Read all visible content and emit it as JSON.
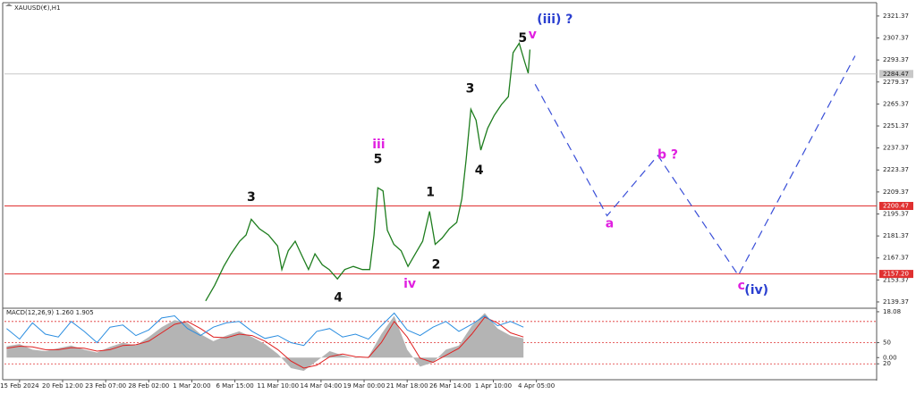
{
  "chart_data": [
    {
      "type": "line",
      "title": "XAUUSD(€),H1",
      "color": "#1e7d1e",
      "x": [
        4.32,
        4.53,
        4.74,
        4.91,
        5.11,
        5.26,
        5.38,
        5.57,
        5.78,
        5.99,
        6.09,
        6.24,
        6.4,
        6.57,
        6.71,
        6.86,
        7.03,
        7.19,
        7.38,
        7.55,
        7.75,
        7.96,
        8.13,
        8.23,
        8.32,
        8.44,
        8.54,
        8.69,
        8.86,
        9.02,
        9.19,
        9.36,
        9.52,
        9.65,
        9.81,
        9.98,
        10.15,
        10.27,
        10.37,
        10.48,
        10.6,
        10.71,
        10.87,
        11.02,
        11.19,
        11.35,
        11.46,
        11.6,
        11.73,
        11.81,
        11.85
      ],
      "values": [
        2140,
        2150,
        2162,
        2170,
        2178,
        2182,
        2192,
        2186,
        2182,
        2175,
        2160,
        2172,
        2178,
        2168,
        2160,
        2170,
        2163,
        2160,
        2154,
        2160,
        2162,
        2160,
        2160,
        2182,
        2212,
        2210,
        2185,
        2176,
        2172,
        2162,
        2170,
        2178,
        2197,
        2176,
        2180,
        2186,
        2190,
        2205,
        2230,
        2262,
        2255,
        2236,
        2250,
        2258,
        2265,
        2270,
        2298,
        2304,
        2292,
        2285,
        2300
      ],
      "xlim": [
        -0.35,
        19.9
      ],
      "ylim": [
        2136.5,
        2328.7
      ],
      "yticks": [
        2321.37,
        2307.37,
        2293.37,
        2279.37,
        2265.37,
        2251.37,
        2237.37,
        2223.37,
        2209.37,
        2195.37,
        2181.37,
        2167.37,
        2153.37,
        2139.37
      ],
      "xticks": [
        {
          "value": 0,
          "label": "15 Feb 2024"
        },
        {
          "value": 1,
          "label": "20 Feb 12:00"
        },
        {
          "value": 2,
          "label": "23 Feb 07:00"
        },
        {
          "value": 3,
          "label": "28 Feb 02:00"
        },
        {
          "value": 4,
          "label": "1 Mar 20:00"
        },
        {
          "value": 5,
          "label": "6 Mar 15:00"
        },
        {
          "value": 6,
          "label": "11 Mar 10:00"
        },
        {
          "value": 7,
          "label": "14 Mar 04:00"
        },
        {
          "value": 8,
          "label": "19 Mar 00:00"
        },
        {
          "value": 9,
          "label": "21 Mar 18:00"
        },
        {
          "value": 10,
          "label": "26 Mar 14:00"
        },
        {
          "value": 11,
          "label": "1 Apr 10:00"
        },
        {
          "value": 12,
          "label": "4 Apr 05:00"
        }
      ],
      "hlines": [
        {
          "value": 2284.47,
          "color": "#c8c8c8"
        },
        {
          "value": 2200.47,
          "color": "#e03030"
        },
        {
          "value": 2157.2,
          "label": "2157.20",
          "color": "#e03030"
        }
      ],
      "projection": {
        "color": "#3a4fd8",
        "x": [
          11.97,
          13.64,
          14.82,
          16.69,
          19.4
        ],
        "y": [
          2277.9,
          2194.2,
          2232.6,
          2156.3,
          2296
        ]
      },
      "annotations": [
        {
          "text": "3",
          "x": 5.38,
          "y": 2206,
          "color": "#111111"
        },
        {
          "text": "4",
          "x": 7.4,
          "y": 2142,
          "color": "#111111"
        },
        {
          "text": "iii",
          "x": 8.34,
          "y": 2239.4,
          "color": "#e020e0"
        },
        {
          "text": "5",
          "x": 8.32,
          "y": 2230,
          "color": "#111111"
        },
        {
          "text": "iv",
          "x": 9.06,
          "y": 2150.7,
          "color": "#e020e0"
        },
        {
          "text": "1",
          "x": 9.54,
          "y": 2208.9,
          "color": "#111111"
        },
        {
          "text": "2",
          "x": 9.67,
          "y": 2163,
          "color": "#111111"
        },
        {
          "text": "3",
          "x": 10.46,
          "y": 2275,
          "color": "#111111"
        },
        {
          "text": "4",
          "x": 10.67,
          "y": 2223,
          "color": "#111111"
        },
        {
          "text": "5",
          "x": 11.68,
          "y": 2307,
          "color": "#111111"
        },
        {
          "text": "v",
          "x": 11.91,
          "y": 2309.5,
          "color": "#e020e0"
        },
        {
          "text": "(iii) ?",
          "x": 12.43,
          "y": 2319,
          "color": "#2a3fd0"
        },
        {
          "text": "a",
          "x": 13.7,
          "y": 2189,
          "color": "#e020e0"
        },
        {
          "text": "b ?",
          "x": 15.05,
          "y": 2233,
          "color": "#e020e0"
        },
        {
          "text": "c",
          "x": 16.76,
          "y": 2149.5,
          "color": "#e020e0"
        },
        {
          "text": "(iv)",
          "x": 17.11,
          "y": 2146.7,
          "color": "#2a3fd0"
        }
      ]
    },
    {
      "type": "line",
      "title": "MACD(12,26,9) 1.260 1.905",
      "x": [
        -0.3,
        0,
        0.3,
        0.6,
        0.9,
        1.2,
        1.5,
        1.8,
        2.1,
        2.4,
        2.7,
        3.0,
        3.3,
        3.6,
        3.9,
        4.2,
        4.5,
        4.8,
        5.1,
        5.4,
        5.7,
        6.0,
        6.3,
        6.6,
        6.9,
        7.2,
        7.5,
        7.8,
        8.1,
        8.4,
        8.7,
        9.0,
        9.3,
        9.6,
        9.9,
        10.2,
        10.5,
        10.8,
        11.1,
        11.4,
        11.7
      ],
      "series": [
        {
          "style": "area",
          "color": "#b4b4b4",
          "values": [
            45,
            48,
            40,
            38,
            42,
            46,
            40,
            36,
            44,
            50,
            46,
            58,
            72,
            82,
            78,
            62,
            52,
            60,
            66,
            58,
            48,
            34,
            14,
            10,
            24,
            38,
            32,
            28,
            30,
            62,
            88,
            40,
            16,
            22,
            40,
            46,
            74,
            92,
            70,
            60,
            56
          ]
        },
        {
          "style": "line",
          "color": "#e02020",
          "values": [
            42,
            45,
            44,
            40,
            40,
            43,
            42,
            38,
            40,
            46,
            47,
            52,
            64,
            76,
            80,
            70,
            58,
            57,
            62,
            60,
            52,
            40,
            24,
            14,
            18,
            30,
            34,
            30,
            29,
            50,
            80,
            58,
            28,
            22,
            32,
            42,
            62,
            86,
            78,
            64,
            58
          ]
        },
        {
          "style": "line",
          "color": "#2a8de0",
          "values": [
            70,
            55,
            78,
            62,
            58,
            80,
            66,
            50,
            72,
            75,
            60,
            68,
            85,
            88,
            70,
            60,
            72,
            78,
            80,
            66,
            56,
            60,
            50,
            46,
            66,
            70,
            58,
            62,
            55,
            74,
            92,
            68,
            60,
            72,
            80,
            66,
            76,
            88,
            74,
            80,
            72
          ]
        }
      ],
      "xlim": [
        -0.35,
        19.9
      ],
      "ylim": [
        -1.25,
        96.25
      ],
      "yticks": [
        {
          "value": 93.8,
          "label": "18.08"
        },
        50,
        {
          "value": 28.8,
          "label": "0.00"
        },
        20
      ],
      "levels": [
        80,
        50,
        20
      ],
      "level_color": "#e03030"
    }
  ]
}
